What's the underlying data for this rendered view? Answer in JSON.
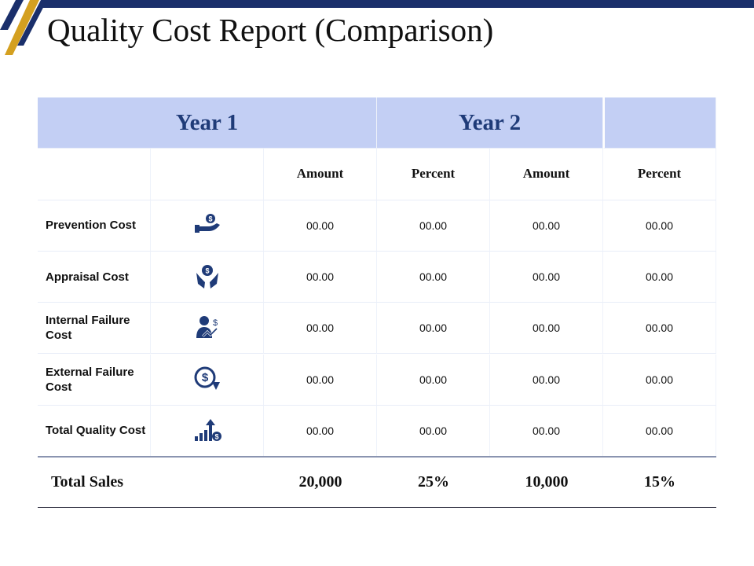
{
  "header": {
    "title": "Quality Cost Report (Comparison)"
  },
  "table": {
    "year_headers": [
      "Year 1",
      "Year 2"
    ],
    "subheaders": [
      "Amount",
      "Percent",
      "Amount",
      "Percent"
    ],
    "rows": [
      {
        "label": "Prevention Cost",
        "values": [
          "00.00",
          "00.00",
          "00.00",
          "00.00"
        ]
      },
      {
        "label": "Appraisal Cost",
        "values": [
          "00.00",
          "00.00",
          "00.00",
          "00.00"
        ]
      },
      {
        "label": "Internal Failure Cost",
        "values": [
          "00.00",
          "00.00",
          "00.00",
          "00.00"
        ]
      },
      {
        "label": "External Failure Cost",
        "values": [
          "00.00",
          "00.00",
          "00.00",
          "00.00"
        ]
      },
      {
        "label": "Total Quality Cost",
        "values": [
          "00.00",
          "00.00",
          "00.00",
          "00.00"
        ]
      }
    ],
    "total": {
      "label": "Total Sales",
      "values": [
        "20,000",
        "25%",
        "10,000",
        "15%"
      ]
    }
  }
}
